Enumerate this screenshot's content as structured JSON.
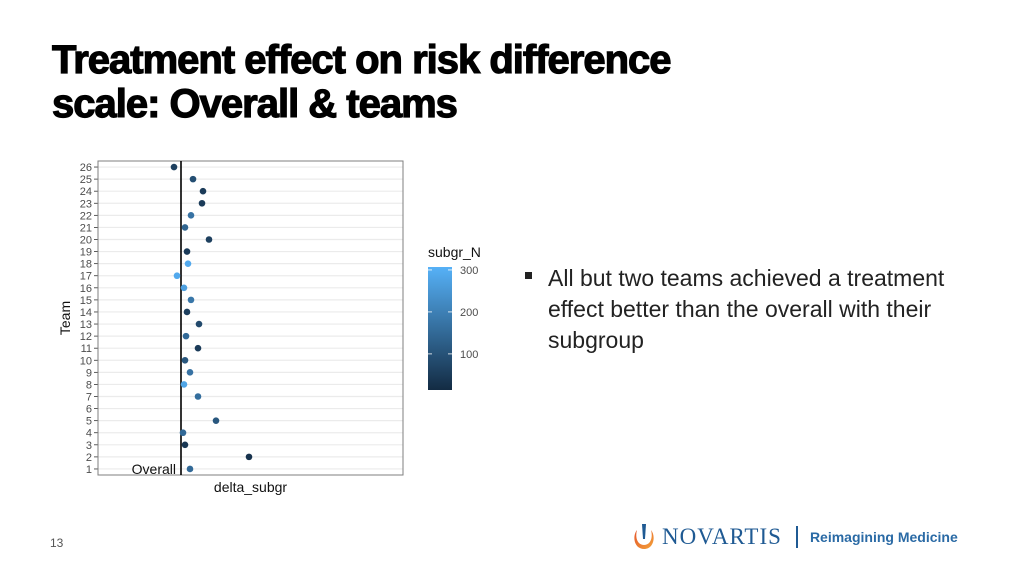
{
  "title": {
    "line1": "Treatment effect on risk difference",
    "line2": "scale: Overall & teams"
  },
  "bullets": [
    "All but two teams achieved a treatment effect better than the overall with their subgroup"
  ],
  "page_number": "13",
  "logo": {
    "brand": "NOVARTIS",
    "tagline": "Reimagining Medicine"
  },
  "chart_data": {
    "type": "scatter",
    "title": "",
    "xlabel": "delta_subgr",
    "ylabel": "Team",
    "x_note": "relative units, overall reference at 0 (no x tick labels shown)",
    "xlim": [
      -0.083,
      0.222
    ],
    "ylim": [
      0.5,
      26.5
    ],
    "grid": true,
    "reference_line": {
      "x": 0,
      "label": "Overall"
    },
    "points": [
      {
        "team": 1,
        "delta": 0.009,
        "n": 150
      },
      {
        "team": 2,
        "delta": 0.068,
        "n": 30
      },
      {
        "team": 3,
        "delta": 0.004,
        "n": 40
      },
      {
        "team": 4,
        "delta": 0.002,
        "n": 150
      },
      {
        "team": 5,
        "delta": 0.035,
        "n": 110
      },
      {
        "team": 7,
        "delta": 0.017,
        "n": 160
      },
      {
        "team": 8,
        "delta": 0.003,
        "n": 280
      },
      {
        "team": 9,
        "delta": 0.009,
        "n": 170
      },
      {
        "team": 10,
        "delta": 0.004,
        "n": 110
      },
      {
        "team": 11,
        "delta": 0.017,
        "n": 50
      },
      {
        "team": 12,
        "delta": 0.005,
        "n": 150
      },
      {
        "team": 13,
        "delta": 0.018,
        "n": 80
      },
      {
        "team": 14,
        "delta": 0.006,
        "n": 60
      },
      {
        "team": 15,
        "delta": 0.01,
        "n": 180
      },
      {
        "team": 16,
        "delta": 0.003,
        "n": 270
      },
      {
        "team": 17,
        "delta": -0.004,
        "n": 290
      },
      {
        "team": 18,
        "delta": 0.007,
        "n": 290
      },
      {
        "team": 19,
        "delta": 0.006,
        "n": 50
      },
      {
        "team": 20,
        "delta": 0.028,
        "n": 60
      },
      {
        "team": 21,
        "delta": 0.004,
        "n": 140
      },
      {
        "team": 22,
        "delta": 0.01,
        "n": 170
      },
      {
        "team": 23,
        "delta": 0.021,
        "n": 50
      },
      {
        "team": 24,
        "delta": 0.022,
        "n": 50
      },
      {
        "team": 25,
        "delta": 0.012,
        "n": 90
      },
      {
        "team": 26,
        "delta": -0.007,
        "n": 60
      }
    ],
    "y_ticks": [
      "1",
      "2",
      "3",
      "4",
      "5",
      "6",
      "7",
      "8",
      "9",
      "10",
      "11",
      "12",
      "13",
      "14",
      "15",
      "16",
      "17",
      "18",
      "19",
      "20",
      "21",
      "22",
      "23",
      "24",
      "25",
      "26"
    ],
    "legend": {
      "title": "subgr_N",
      "ticks": [
        "100",
        "200",
        "300"
      ],
      "range": [
        14,
        307
      ],
      "low_color": "#132B43",
      "high_color": "#56B1F7",
      "placement": "right"
    }
  }
}
